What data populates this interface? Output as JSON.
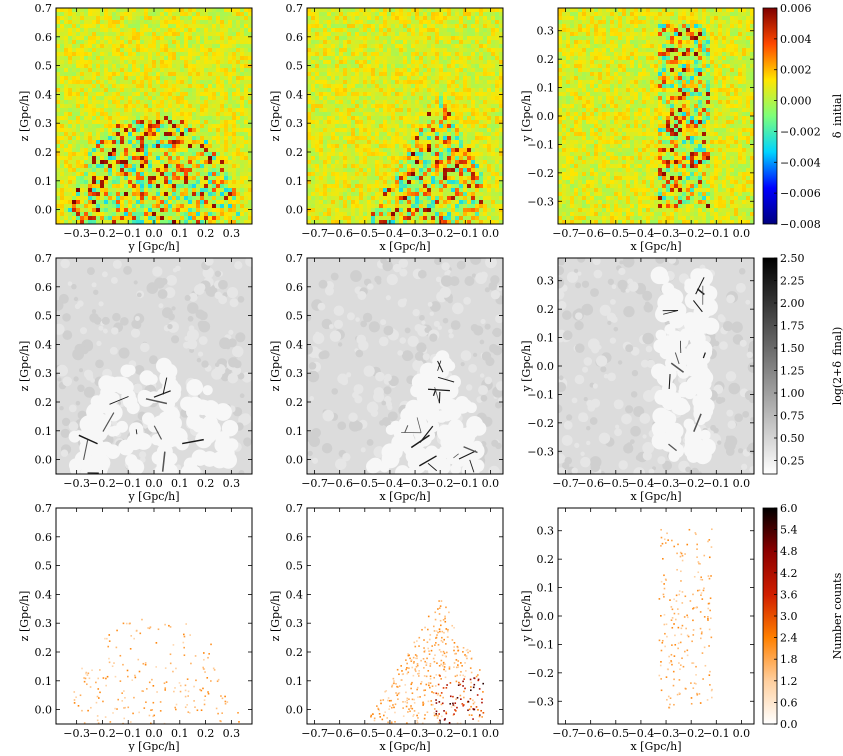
{
  "figure": {
    "title": ""
  },
  "chart_data": [
    {
      "type": "heatmap",
      "row": 0,
      "col": 0,
      "field": "initial",
      "title": "",
      "xlabel": "y [Gpc/h]",
      "ylabel": "z [Gpc/h]",
      "xlim": [
        -0.38,
        0.38
      ],
      "ylim": [
        -0.05,
        0.7
      ],
      "xticks": [
        -0.3,
        -0.2,
        -0.1,
        0.0,
        0.1,
        0.2,
        0.3
      ],
      "xtick_labels": [
        "−0.3",
        "−0.2",
        "−0.1",
        "0.0",
        "0.1",
        "0.2",
        "0.3"
      ],
      "yticks": [
        0.0,
        0.1,
        0.2,
        0.3,
        0.4,
        0.5,
        0.6,
        0.7
      ],
      "ytick_labels": [
        "0.0",
        "0.1",
        "0.2",
        "0.3",
        "0.4",
        "0.5",
        "0.6",
        "0.7"
      ],
      "region": {
        "shape": "half-ellipse",
        "center": [
          0.0,
          -0.05
        ],
        "radii": [
          0.33,
          0.38
        ]
      }
    },
    {
      "type": "heatmap",
      "row": 0,
      "col": 1,
      "field": "initial",
      "title": "",
      "xlabel": "x [Gpc/h]",
      "ylabel": "z [Gpc/h]",
      "xlim": [
        -0.73,
        0.05
      ],
      "ylim": [
        -0.05,
        0.7
      ],
      "xticks": [
        -0.7,
        -0.6,
        -0.5,
        -0.4,
        -0.3,
        -0.2,
        -0.1,
        0.0
      ],
      "xtick_labels": [
        "−0.7",
        "−0.6",
        "−0.5",
        "−0.4",
        "−0.3",
        "−0.2",
        "−0.1",
        "0.0"
      ],
      "yticks": [
        0.0,
        0.1,
        0.2,
        0.3,
        0.4,
        0.5,
        0.6,
        0.7
      ],
      "ytick_labels": [
        "0.0",
        "0.1",
        "0.2",
        "0.3",
        "0.4",
        "0.5",
        "0.6",
        "0.7"
      ],
      "region": {
        "shape": "triangle",
        "vertices": [
          [
            -0.5,
            -0.05
          ],
          [
            -0.2,
            0.4
          ],
          [
            -0.03,
            0.12
          ],
          [
            -0.03,
            -0.05
          ]
        ]
      }
    },
    {
      "type": "heatmap",
      "row": 0,
      "col": 2,
      "field": "initial",
      "title": "",
      "xlabel": "x [Gpc/h]",
      "ylabel": "y [Gpc/h]",
      "xlim": [
        -0.73,
        0.05
      ],
      "ylim": [
        -0.38,
        0.38
      ],
      "xticks": [
        -0.7,
        -0.6,
        -0.5,
        -0.4,
        -0.3,
        -0.2,
        -0.1,
        0.0
      ],
      "xtick_labels": [
        "−0.7",
        "−0.6",
        "−0.5",
        "−0.4",
        "−0.3",
        "−0.2",
        "−0.1",
        "0.0"
      ],
      "yticks": [
        -0.3,
        -0.2,
        -0.1,
        0.0,
        0.1,
        0.2,
        0.3
      ],
      "ytick_labels": [
        "−0.3",
        "−0.2",
        "−0.1",
        "0.0",
        "0.1",
        "0.2",
        "0.3"
      ],
      "region": {
        "shape": "strip",
        "xrange": [
          -0.33,
          -0.12
        ],
        "yrange": [
          -0.32,
          0.32
        ]
      }
    },
    {
      "type": "heatmap",
      "row": 1,
      "col": 0,
      "field": "final",
      "title": "",
      "xlabel": "y [Gpc/h]",
      "ylabel": "z [Gpc/h]",
      "xlim": [
        -0.38,
        0.38
      ],
      "ylim": [
        -0.05,
        0.7
      ],
      "xticks": [
        -0.3,
        -0.2,
        -0.1,
        0.0,
        0.1,
        0.2,
        0.3
      ],
      "xtick_labels": [
        "−0.3",
        "−0.2",
        "−0.1",
        "0.0",
        "0.1",
        "0.2",
        "0.3"
      ],
      "yticks": [
        0.0,
        0.1,
        0.2,
        0.3,
        0.4,
        0.5,
        0.6,
        0.7
      ],
      "ytick_labels": [
        "0.0",
        "0.1",
        "0.2",
        "0.3",
        "0.4",
        "0.5",
        "0.6",
        "0.7"
      ],
      "region": {
        "shape": "half-ellipse",
        "center": [
          0.0,
          -0.05
        ],
        "radii": [
          0.33,
          0.38
        ]
      }
    },
    {
      "type": "heatmap",
      "row": 1,
      "col": 1,
      "field": "final",
      "title": "",
      "xlabel": "x [Gpc/h]",
      "ylabel": "z [Gpc/h]",
      "xlim": [
        -0.73,
        0.05
      ],
      "ylim": [
        -0.05,
        0.7
      ],
      "xticks": [
        -0.7,
        -0.6,
        -0.5,
        -0.4,
        -0.3,
        -0.2,
        -0.1,
        0.0
      ],
      "xtick_labels": [
        "−0.7",
        "−0.6",
        "−0.5",
        "−0.4",
        "−0.3",
        "−0.2",
        "−0.1",
        "0.0"
      ],
      "yticks": [
        0.0,
        0.1,
        0.2,
        0.3,
        0.4,
        0.5,
        0.6,
        0.7
      ],
      "ytick_labels": [
        "0.0",
        "0.1",
        "0.2",
        "0.3",
        "0.4",
        "0.5",
        "0.6",
        "0.7"
      ],
      "region": {
        "shape": "triangle",
        "vertices": [
          [
            -0.5,
            -0.05
          ],
          [
            -0.2,
            0.4
          ],
          [
            -0.03,
            0.12
          ],
          [
            -0.03,
            -0.05
          ]
        ]
      }
    },
    {
      "type": "heatmap",
      "row": 1,
      "col": 2,
      "field": "final",
      "title": "",
      "xlabel": "x [Gpc/h]",
      "ylabel": "y [Gpc/h]",
      "xlim": [
        -0.73,
        0.05
      ],
      "ylim": [
        -0.38,
        0.38
      ],
      "xticks": [
        -0.7,
        -0.6,
        -0.5,
        -0.4,
        -0.3,
        -0.2,
        -0.1,
        0.0
      ],
      "xtick_labels": [
        "−0.7",
        "−0.6",
        "−0.5",
        "−0.4",
        "−0.3",
        "−0.2",
        "−0.1",
        "0.0"
      ],
      "yticks": [
        -0.3,
        -0.2,
        -0.1,
        0.0,
        0.1,
        0.2,
        0.3
      ],
      "ytick_labels": [
        "−0.3",
        "−0.2",
        "−0.1",
        "0.0",
        "0.1",
        "0.2",
        "0.3"
      ],
      "region": {
        "shape": "strip",
        "xrange": [
          -0.33,
          -0.12
        ],
        "yrange": [
          -0.32,
          0.32
        ]
      }
    },
    {
      "type": "heatmap",
      "row": 2,
      "col": 0,
      "field": "counts",
      "title": "",
      "xlabel": "y [Gpc/h]",
      "ylabel": "z [Gpc/h]",
      "xlim": [
        -0.38,
        0.38
      ],
      "ylim": [
        -0.05,
        0.7
      ],
      "xticks": [
        -0.3,
        -0.2,
        -0.1,
        0.0,
        0.1,
        0.2,
        0.3
      ],
      "xtick_labels": [
        "−0.3",
        "−0.2",
        "−0.1",
        "0.0",
        "0.1",
        "0.2",
        "0.3"
      ],
      "yticks": [
        0.0,
        0.1,
        0.2,
        0.3,
        0.4,
        0.5,
        0.6,
        0.7
      ],
      "ytick_labels": [
        "0.0",
        "0.1",
        "0.2",
        "0.3",
        "0.4",
        "0.5",
        "0.6",
        "0.7"
      ],
      "region": {
        "shape": "half-ellipse",
        "center": [
          0.0,
          -0.05
        ],
        "radii": [
          0.33,
          0.38
        ]
      }
    },
    {
      "type": "heatmap",
      "row": 2,
      "col": 1,
      "field": "counts",
      "title": "",
      "xlabel": "x [Gpc/h]",
      "ylabel": "z [Gpc/h]",
      "xlim": [
        -0.73,
        0.05
      ],
      "ylim": [
        -0.05,
        0.7
      ],
      "xticks": [
        -0.7,
        -0.6,
        -0.5,
        -0.4,
        -0.3,
        -0.2,
        -0.1,
        0.0
      ],
      "xtick_labels": [
        "−0.7",
        "−0.6",
        "−0.5",
        "−0.4",
        "−0.3",
        "−0.2",
        "−0.1",
        "0.0"
      ],
      "yticks": [
        0.0,
        0.1,
        0.2,
        0.3,
        0.4,
        0.5,
        0.6,
        0.7
      ],
      "ytick_labels": [
        "0.0",
        "0.1",
        "0.2",
        "0.3",
        "0.4",
        "0.5",
        "0.6",
        "0.7"
      ],
      "region": {
        "shape": "triangle",
        "vertices": [
          [
            -0.5,
            -0.05
          ],
          [
            -0.2,
            0.4
          ],
          [
            -0.03,
            0.12
          ],
          [
            -0.03,
            -0.05
          ]
        ]
      }
    },
    {
      "type": "heatmap",
      "row": 2,
      "col": 2,
      "field": "counts",
      "title": "",
      "xlabel": "x [Gpc/h]",
      "ylabel": "y [Gpc/h]",
      "xlim": [
        -0.73,
        0.05
      ],
      "ylim": [
        -0.38,
        0.38
      ],
      "xticks": [
        -0.7,
        -0.6,
        -0.5,
        -0.4,
        -0.3,
        -0.2,
        -0.1,
        0.0
      ],
      "xtick_labels": [
        "−0.7",
        "−0.6",
        "−0.5",
        "−0.4",
        "−0.3",
        "−0.2",
        "−0.1",
        "0.0"
      ],
      "yticks": [
        -0.3,
        -0.2,
        -0.1,
        0.0,
        0.1,
        0.2,
        0.3
      ],
      "ytick_labels": [
        "−0.3",
        "−0.2",
        "−0.1",
        "0.0",
        "0.1",
        "0.2",
        "0.3"
      ],
      "region": {
        "shape": "strip",
        "xrange": [
          -0.33,
          -0.12
        ],
        "yrange": [
          -0.32,
          0.32
        ]
      }
    }
  ],
  "colorbars": [
    {
      "row": 0,
      "label": "δ_initial",
      "colormap": "jet",
      "colors": [
        "#00007f",
        "#0000ff",
        "#00d4ff",
        "#7dff7a",
        "#ffe600",
        "#ff4800",
        "#7f0000"
      ],
      "range": [
        -0.008,
        0.006
      ],
      "ticks": [
        0.006,
        0.004,
        0.002,
        0.0,
        -0.002,
        -0.004,
        -0.006,
        -0.008
      ],
      "tick_labels": [
        "0.006",
        "0.004",
        "0.002",
        "0.000",
        "−0.002",
        "−0.004",
        "−0.006",
        "−0.008"
      ]
    },
    {
      "row": 1,
      "label": "log(2+δ_final)",
      "colormap": "gray_r",
      "colors": [
        "#ffffff",
        "#000000"
      ],
      "range": [
        0.1,
        2.5
      ],
      "ticks": [
        2.5,
        2.25,
        2.0,
        1.75,
        1.5,
        1.25,
        1.0,
        0.75,
        0.5,
        0.25
      ],
      "tick_labels": [
        "2.50",
        "2.25",
        "2.00",
        "1.75",
        "1.50",
        "1.25",
        "1.00",
        "0.75",
        "0.50",
        "0.25"
      ]
    },
    {
      "row": 2,
      "label": "Number counts",
      "colormap": "gist_heat_r",
      "colors": [
        "#ffffff",
        "#ffcf9e",
        "#ff8000",
        "#d01e00",
        "#8c0000",
        "#000000"
      ],
      "range": [
        0.0,
        6.0
      ],
      "ticks": [
        6.0,
        5.4,
        4.8,
        4.2,
        3.6,
        3.0,
        2.4,
        1.8,
        1.2,
        0.6,
        0.0
      ],
      "tick_labels": [
        "6.0",
        "5.4",
        "4.8",
        "4.2",
        "3.6",
        "3.0",
        "2.4",
        "1.8",
        "1.2",
        "0.6",
        "0.0"
      ]
    }
  ]
}
